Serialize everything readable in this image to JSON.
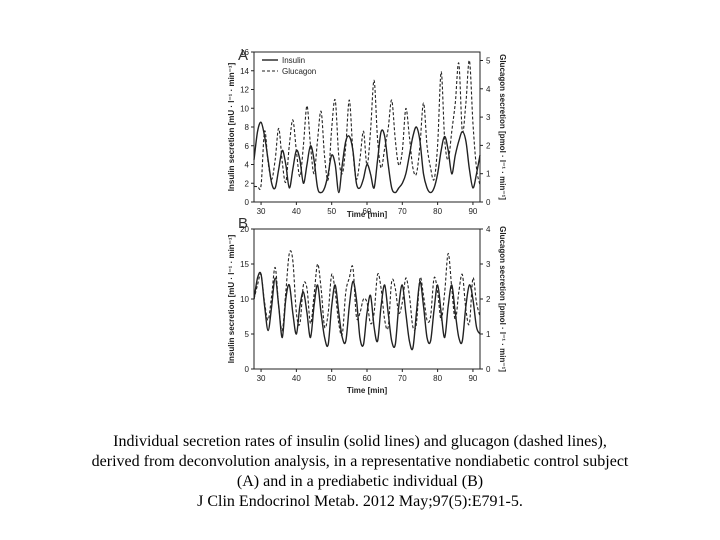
{
  "chart_data": [
    {
      "type": "line",
      "panel": "A",
      "xlabel": "Time [min]",
      "ylabel_left": "Insulin secretion [mU · l⁻¹ · min⁻¹]",
      "ylabel_right": "Glucagon secretion [pmol · l⁻¹ · min⁻¹]",
      "xlim": [
        28,
        92
      ],
      "xticks": [
        30,
        40,
        50,
        60,
        70,
        80,
        90
      ],
      "ylim_left": [
        0,
        16
      ],
      "yticks_left": [
        0,
        2,
        4,
        6,
        8,
        10,
        12,
        14,
        16
      ],
      "ylim_right": [
        0,
        5.3
      ],
      "yticks_right": [
        0,
        1,
        2,
        3,
        4,
        5
      ],
      "legend": {
        "placement": "top-left",
        "entries": [
          "Insulin",
          "Glucagon"
        ]
      },
      "x": [
        28,
        29,
        30,
        31,
        32,
        33,
        34,
        35,
        36,
        37,
        38,
        39,
        40,
        41,
        42,
        43,
        44,
        45,
        46,
        47,
        48,
        49,
        50,
        51,
        52,
        53,
        54,
        55,
        56,
        57,
        58,
        59,
        60,
        61,
        62,
        63,
        64,
        65,
        66,
        67,
        68,
        69,
        70,
        71,
        72,
        73,
        74,
        75,
        76,
        77,
        78,
        79,
        80,
        81,
        82,
        83,
        84,
        85,
        86,
        87,
        88,
        89,
        90,
        91,
        92
      ],
      "series": [
        {
          "name": "Insulin",
          "style": "solid",
          "axis": "left",
          "values": [
            4.5,
            7.5,
            8.5,
            7,
            4.5,
            2,
            1.5,
            3.5,
            5.5,
            4,
            1.5,
            3.5,
            5.5,
            4.5,
            2,
            4,
            6,
            4.5,
            1.5,
            1,
            1.5,
            3,
            5,
            4,
            1,
            4,
            6.5,
            7,
            5.5,
            2,
            1.5,
            2.5,
            4,
            3,
            1.5,
            4.5,
            7.5,
            7,
            4,
            1.5,
            1,
            1.5,
            2,
            3,
            5,
            7,
            8,
            6.5,
            3,
            1.5,
            1,
            1.5,
            3,
            5.5,
            7,
            5.5,
            3,
            5,
            6.5,
            7.5,
            6.5,
            3.5,
            1.5,
            3,
            5
          ]
        },
        {
          "name": "Glucagon",
          "style": "dashed",
          "axis": "right",
          "values": [
            0.55,
            0.55,
            0.6,
            2.5,
            1.4,
            0.8,
            1.5,
            2.6,
            1.4,
            0.7,
            2.0,
            2.9,
            1.8,
            0.9,
            2.0,
            3.4,
            2.0,
            1.0,
            2.2,
            3.2,
            1.6,
            0.8,
            2.6,
            3.6,
            1.6,
            1.0,
            2.0,
            3.6,
            1.8,
            0.8,
            1.5,
            2.5,
            1.3,
            2.5,
            4.3,
            2.2,
            1.2,
            1.9,
            2.6,
            3.6,
            2.2,
            1.3,
            1.8,
            3.3,
            2.3,
            1.2,
            1.0,
            2.0,
            3.5,
            2.0,
            1.2,
            0.8,
            2.0,
            4.6,
            2.2,
            1.5,
            2.5,
            3.5,
            4.9,
            2.5,
            3.5,
            5.0,
            2.8,
            1.2,
            0.6
          ]
        }
      ]
    },
    {
      "type": "line",
      "panel": "B",
      "xlabel": "Time [min]",
      "ylabel_left": "Insulin secretion [mU · l⁻¹ · min⁻¹]",
      "ylabel_right": "Glucagon secretion [pmol · l⁻¹ · min⁻¹]",
      "xlim": [
        28,
        92
      ],
      "xticks": [
        30,
        40,
        50,
        60,
        70,
        80,
        90
      ],
      "ylim_left": [
        0,
        20
      ],
      "yticks_left": [
        0,
        5,
        10,
        15,
        20
      ],
      "ylim_right": [
        0,
        4
      ],
      "yticks_right": [
        0,
        1,
        2,
        3,
        4
      ],
      "x": [
        28,
        29,
        30,
        31,
        32,
        33,
        34,
        35,
        36,
        37,
        38,
        39,
        40,
        41,
        42,
        43,
        44,
        45,
        46,
        47,
        48,
        49,
        50,
        51,
        52,
        53,
        54,
        55,
        56,
        57,
        58,
        59,
        60,
        61,
        62,
        63,
        64,
        65,
        66,
        67,
        68,
        69,
        70,
        71,
        72,
        73,
        74,
        75,
        76,
        77,
        78,
        79,
        80,
        81,
        82,
        83,
        84,
        85,
        86,
        87,
        88,
        89,
        90,
        91,
        92
      ],
      "series": [
        {
          "name": "Insulin",
          "style": "solid",
          "axis": "left",
          "values": [
            10,
            13,
            13.5,
            9,
            5.5,
            9,
            13,
            9,
            4.5,
            10,
            12,
            8,
            5,
            9,
            11,
            8,
            4.5,
            9,
            12,
            8,
            4.5,
            3.5,
            9,
            12,
            8,
            4.5,
            4,
            9,
            12.5,
            10,
            4.5,
            3.5,
            8,
            10.5,
            6,
            4,
            9,
            12,
            8,
            4,
            3.5,
            9,
            12,
            8,
            4,
            3,
            8,
            12.5,
            9,
            4.5,
            4,
            8.5,
            12,
            8,
            4.5,
            9,
            12,
            8,
            4.5,
            4,
            9,
            12,
            10,
            6,
            5
          ]
        },
        {
          "name": "Glucagon",
          "style": "dashed",
          "axis": "right",
          "values": [
            2.0,
            2.4,
            2.7,
            1.9,
            1.4,
            2.1,
            2.9,
            1.8,
            1.1,
            2.2,
            3.3,
            3.1,
            1.6,
            1.3,
            2.4,
            2.3,
            1.3,
            2.1,
            3.0,
            2.3,
            1.2,
            1.6,
            2.7,
            2.2,
            1.3,
            1.0,
            2.2,
            2.6,
            2.9,
            1.5,
            1.6,
            2.0,
            1.9,
            1.3,
            1.6,
            2.7,
            2.3,
            1.4,
            1.2,
            2.5,
            2.3,
            1.6,
            1.9,
            2.6,
            2.1,
            1.2,
            1.3,
            2.6,
            2.1,
            1.4,
            1.5,
            2.6,
            2.2,
            1.4,
            2.2,
            3.3,
            2.3,
            1.4,
            2.2,
            2.7,
            1.7,
            1.3,
            2.6,
            1.9,
            1.5
          ]
        }
      ]
    }
  ],
  "caption": {
    "line1": "Individual secretion rates of insulin (solid lines) and glucagon (dashed lines),",
    "line2": "derived from deconvolution analysis, in a representative nondiabetic control subject",
    "line3": "(A) and in a prediabetic individual (B)",
    "citation": "J Clin Endocrinol Metab. 2012 May;97(5):E791-5."
  }
}
